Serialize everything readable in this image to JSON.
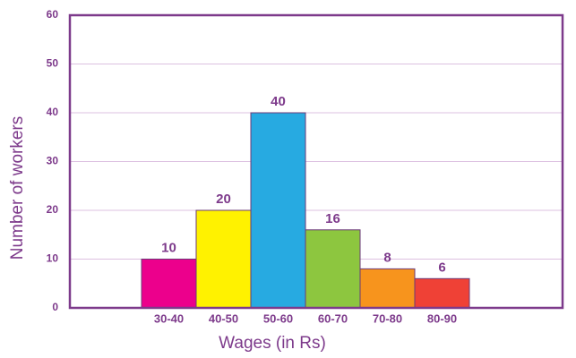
{
  "chart_data": {
    "type": "bar",
    "x_label": "Wages (in Rs)",
    "y_label": "Number of workers",
    "categories": [
      "30-40",
      "40-50",
      "50-60",
      "60-70",
      "70-80",
      "80-90"
    ],
    "values": [
      10,
      20,
      40,
      16,
      8,
      6
    ],
    "colors": [
      "#ec008c",
      "#fff200",
      "#27aae1",
      "#8dc63f",
      "#f7941d",
      "#ef4136"
    ],
    "ylim": [
      0,
      60
    ],
    "yticks": [
      0,
      10,
      20,
      30,
      40,
      50,
      60
    ],
    "grid": true
  }
}
